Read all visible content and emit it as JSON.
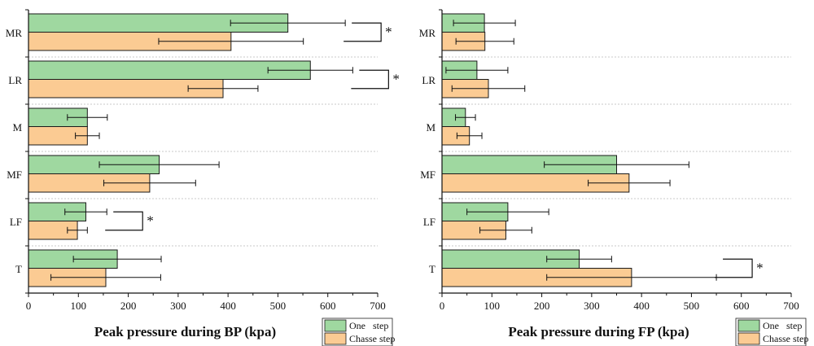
{
  "colors": {
    "series_one": "#9fd8a0",
    "series_chasse": "#fbcb93",
    "axis": "#111111",
    "separator": "#c8c8c8"
  },
  "chart_data": [
    {
      "type": "bar",
      "orientation": "horizontal",
      "title": "",
      "xlabel": "Peak pressure during BP (kpa)",
      "ylabel": "",
      "xlim": [
        0,
        700
      ],
      "xticks": [
        0,
        100,
        200,
        300,
        400,
        500,
        600,
        700
      ],
      "categories": [
        "MR",
        "LR",
        "M",
        "MF",
        "LF",
        "T"
      ],
      "series": [
        {
          "name": "One   step",
          "values": [
            520,
            565,
            118,
            262,
            115,
            178
          ],
          "errors": [
            115,
            85,
            40,
            120,
            42,
            88
          ]
        },
        {
          "name": "Chasse step",
          "values": [
            406,
            390,
            118,
            243,
            98,
            155
          ],
          "errors": [
            145,
            70,
            24,
            92,
            20,
            110
          ]
        }
      ],
      "significance": [
        {
          "category": "MR",
          "label": "*"
        },
        {
          "category": "LR",
          "label": "*"
        },
        {
          "category": "LF",
          "label": "*"
        }
      ],
      "legend": "bottom-right"
    },
    {
      "type": "bar",
      "orientation": "horizontal",
      "title": "",
      "xlabel": "Peak pressure during FP (kpa)",
      "ylabel": "",
      "xlim": [
        0,
        700
      ],
      "xticks": [
        0,
        100,
        200,
        300,
        400,
        500,
        600,
        700
      ],
      "categories": [
        "MR",
        "LR",
        "M",
        "MF",
        "LF",
        "T"
      ],
      "series": [
        {
          "name": "One   step",
          "values": [
            85,
            70,
            47,
            350,
            132,
            275
          ],
          "errors": [
            62,
            62,
            20,
            145,
            82,
            65
          ]
        },
        {
          "name": "Chasse step",
          "values": [
            86,
            93,
            55,
            375,
            128,
            380
          ],
          "errors": [
            58,
            73,
            25,
            82,
            52,
            170
          ]
        }
      ],
      "significance": [
        {
          "category": "T",
          "label": "*"
        }
      ],
      "legend": "bottom-right"
    }
  ]
}
